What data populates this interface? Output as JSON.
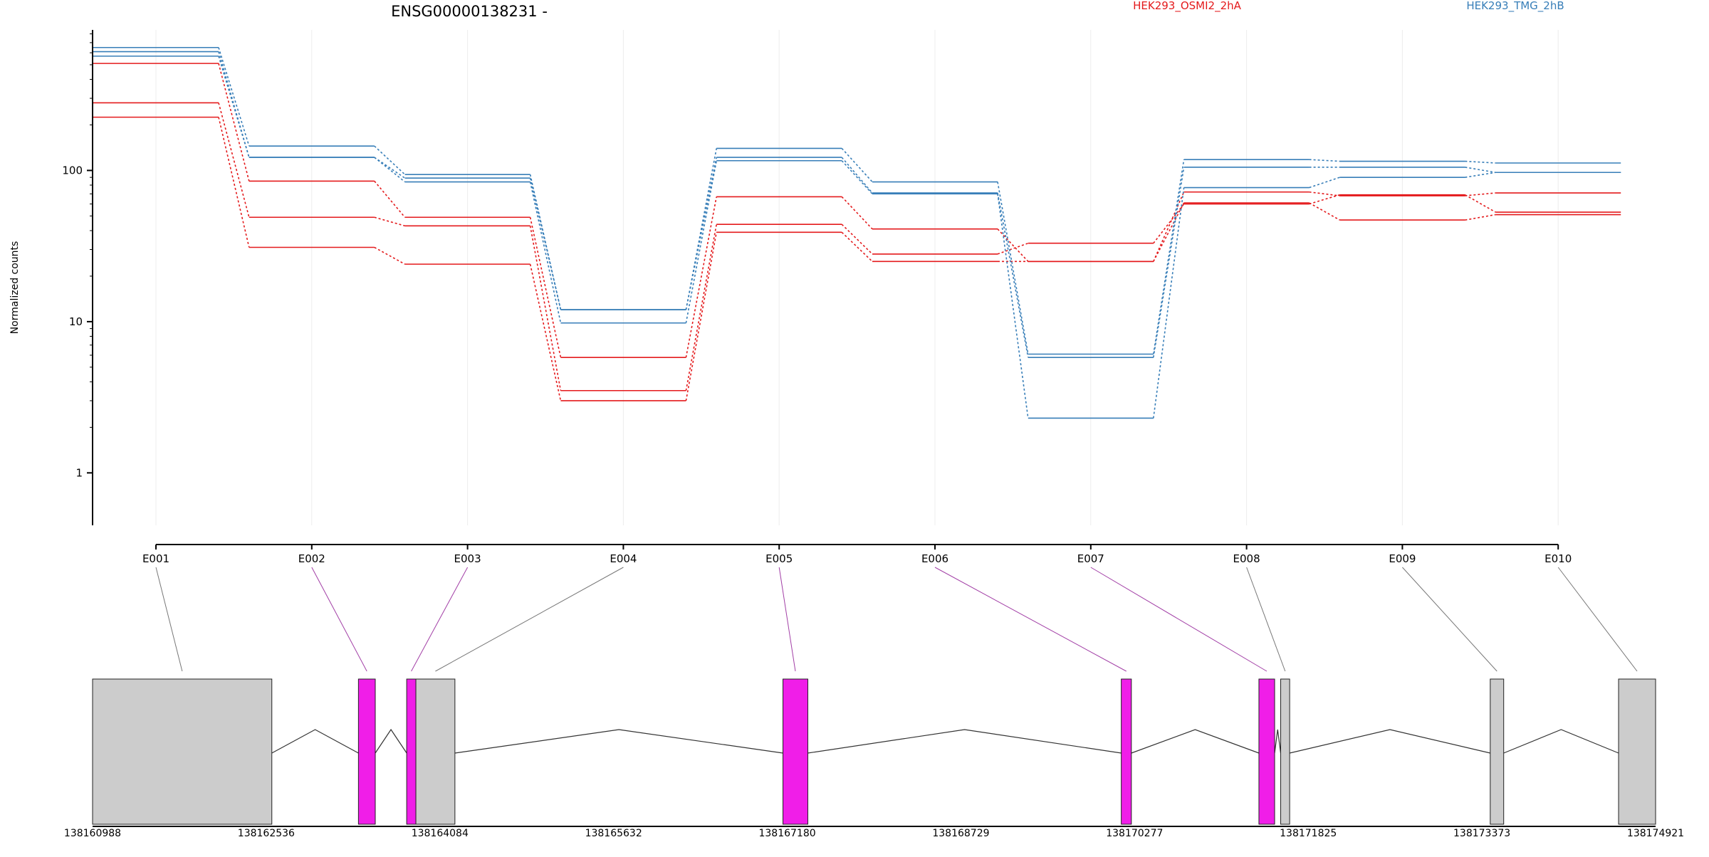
{
  "chart_data": {
    "type": "line",
    "title": "ENSG00000138231 -",
    "ylabel": "Normalized counts",
    "yscale": "log",
    "ylim": [
      0.45,
      850
    ],
    "yticks": [
      1,
      10,
      100
    ],
    "ytick_labels": [
      "1",
      "10",
      "100"
    ],
    "categories": [
      "E001",
      "E002",
      "E003",
      "E004",
      "E005",
      "E006",
      "E007",
      "E008",
      "E009",
      "E010"
    ],
    "legend": [
      {
        "label": "HEK293_OSMI2_2hA",
        "color": "#e41a1c"
      },
      {
        "label": "HEK293_TMG_2hB",
        "color": "#377eb8"
      }
    ],
    "series": [
      {
        "group": 0,
        "color": "#e41a1c",
        "values": [
          510,
          85,
          49,
          5.8,
          67,
          41,
          25,
          72,
          68,
          71
        ]
      },
      {
        "group": 0,
        "color": "#e41a1c",
        "values": [
          280,
          49,
          43,
          3.5,
          44,
          28,
          33,
          60,
          69,
          53
        ]
      },
      {
        "group": 0,
        "color": "#e41a1c",
        "values": [
          225,
          31,
          24,
          3.0,
          39,
          25,
          25,
          61,
          47,
          51
        ]
      },
      {
        "group": 1,
        "color": "#377eb8",
        "values": [
          650,
          145,
          94,
          12,
          140,
          84,
          6.1,
          118,
          115,
          112
        ]
      },
      {
        "group": 1,
        "color": "#377eb8",
        "values": [
          610,
          122,
          89,
          12,
          122,
          71,
          5.8,
          105,
          105,
          97
        ]
      },
      {
        "group": 1,
        "color": "#377eb8",
        "values": [
          570,
          122,
          84,
          9.8,
          116,
          70,
          2.3,
          77,
          90,
          97
        ]
      }
    ],
    "gene_model": {
      "coordinate_range": [
        138160988,
        138174921
      ],
      "axis_ticks": [
        "138160988",
        "138162536",
        "138164084",
        "138165632",
        "138167180",
        "138168729",
        "138170277",
        "138171825",
        "138173373",
        "138174921"
      ],
      "exons": [
        {
          "id": "E001",
          "start": 138160988,
          "end": 138162586,
          "color": "#cccccc"
        },
        {
          "id": "E002",
          "start": 138163358,
          "end": 138163508,
          "color": "#f01ee8"
        },
        {
          "id": "E003",
          "start": 138163788,
          "end": 138163870,
          "color": "#f01ee8"
        },
        {
          "id": "E004",
          "start": 138163870,
          "end": 138164218,
          "color": "#cccccc"
        },
        {
          "id": "E005",
          "start": 138167142,
          "end": 138167364,
          "color": "#f01ee8"
        },
        {
          "id": "E006",
          "start": 138170158,
          "end": 138170248,
          "color": "#f01ee8"
        },
        {
          "id": "E007",
          "start": 138171385,
          "end": 138171525,
          "color": "#f01ee8"
        },
        {
          "id": "E008",
          "start": 138171579,
          "end": 138171659,
          "color": "#cccccc"
        },
        {
          "id": "E009",
          "start": 138173447,
          "end": 138173567,
          "color": "#cccccc"
        },
        {
          "id": "E010",
          "start": 138174591,
          "end": 138174921,
          "color": "#cccccc"
        }
      ]
    }
  }
}
